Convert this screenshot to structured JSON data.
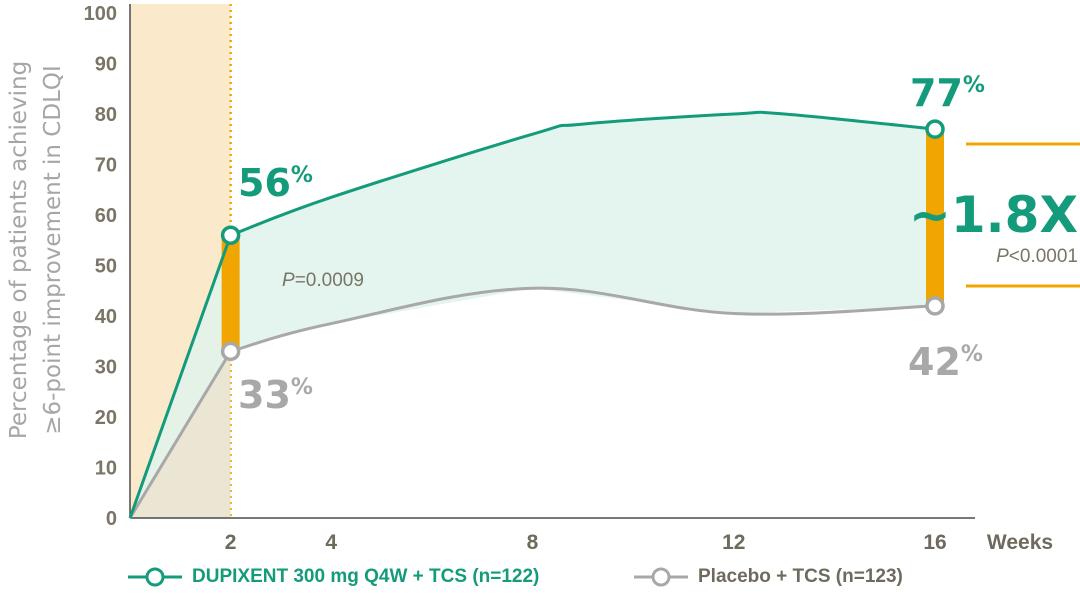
{
  "chart_data": {
    "type": "line",
    "xlabel_right": "Weeks",
    "ylabel_line1": "Percentage of patients achieving",
    "ylabel_line2": "≥6-point improvement in CDLQI",
    "ylim": [
      0,
      100
    ],
    "yticks": [
      "0",
      "10",
      "20",
      "30",
      "40",
      "50",
      "60",
      "70",
      "80",
      "90",
      "100"
    ],
    "xticks": [
      "2",
      "4",
      "8",
      "12",
      "16"
    ],
    "series": [
      {
        "name": "DUPIXENT 300 mg Q4W + TCS (n=122)",
        "color": "#149b7b",
        "x": [
          0,
          2,
          4,
          8,
          9,
          12,
          13,
          16
        ],
        "y": [
          0,
          56,
          63.5,
          76,
          78,
          80,
          80,
          77
        ]
      },
      {
        "name": "Placebo + TCS (n=123)",
        "color": "#a8a8a8",
        "x": [
          0,
          2,
          4,
          8,
          12,
          16
        ],
        "y": [
          0,
          33,
          38.5,
          45.5,
          40.5,
          42
        ]
      }
    ],
    "annotations": {
      "week2_dupi": "56",
      "week2_placebo": "33",
      "week16_dupi": "77",
      "week16_placebo": "42",
      "percent_sign": "%",
      "week2_p_prefix": "P",
      "week2_p_value": "=0.0009",
      "fold_change": "~1.8X",
      "week16_p_prefix": "P",
      "week16_p_value": "<0.0001"
    },
    "colors": {
      "dupixent": "#149b7b",
      "placebo": "#a8a8a8",
      "difference_bar": "#f0a500",
      "shaded_region": "#fbe9cc",
      "between_fill": "#dff3ec",
      "dotted_line": "#f0a500"
    },
    "grid": false,
    "legend_position": "bottom"
  }
}
